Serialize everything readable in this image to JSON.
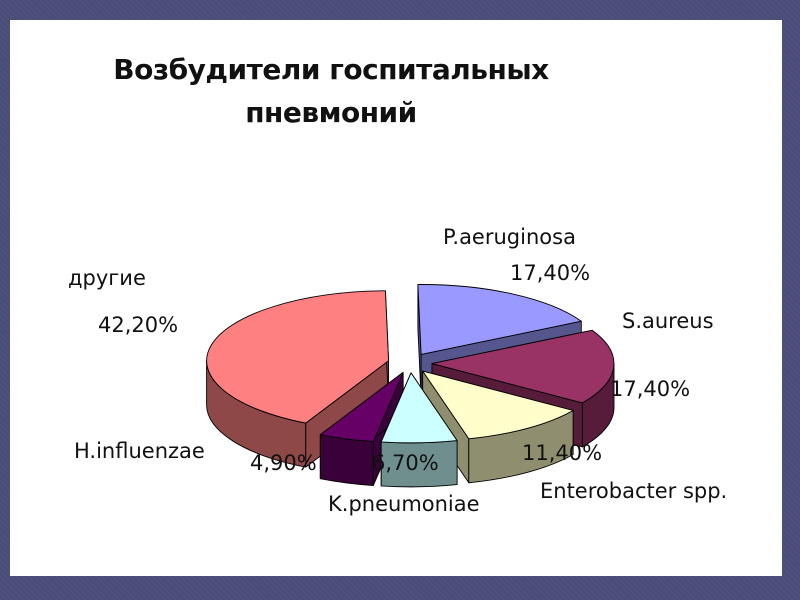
{
  "chart_data": {
    "type": "pie",
    "title_lines": [
      "Возбудители госпитальных",
      "пневмоний"
    ],
    "slices": [
      {
        "name": "P.aeruginosa",
        "label": "17,40%",
        "value": 17.4,
        "color": "#9999ff",
        "side": "#56568f"
      },
      {
        "name": "S.aureus",
        "label": "17,40%",
        "value": 17.4,
        "color": "#993366",
        "side": "#561c3a"
      },
      {
        "name": "Enterobacter spp.",
        "label": "11,40%",
        "value": 11.4,
        "color": "#ffffcc",
        "side": "#8f8f70"
      },
      {
        "name": "K.pneumoniae",
        "label": "6,70%",
        "value": 6.7,
        "color": "#ccffff",
        "side": "#6f8f8f"
      },
      {
        "name": "H.influenzae",
        "label": "4,90%",
        "value": 4.9,
        "color": "#660066",
        "side": "#3a003a"
      },
      {
        "name": "другие",
        "label": "42,20%",
        "value": 42.2,
        "color": "#ff8080",
        "side": "#8f4848"
      }
    ]
  }
}
